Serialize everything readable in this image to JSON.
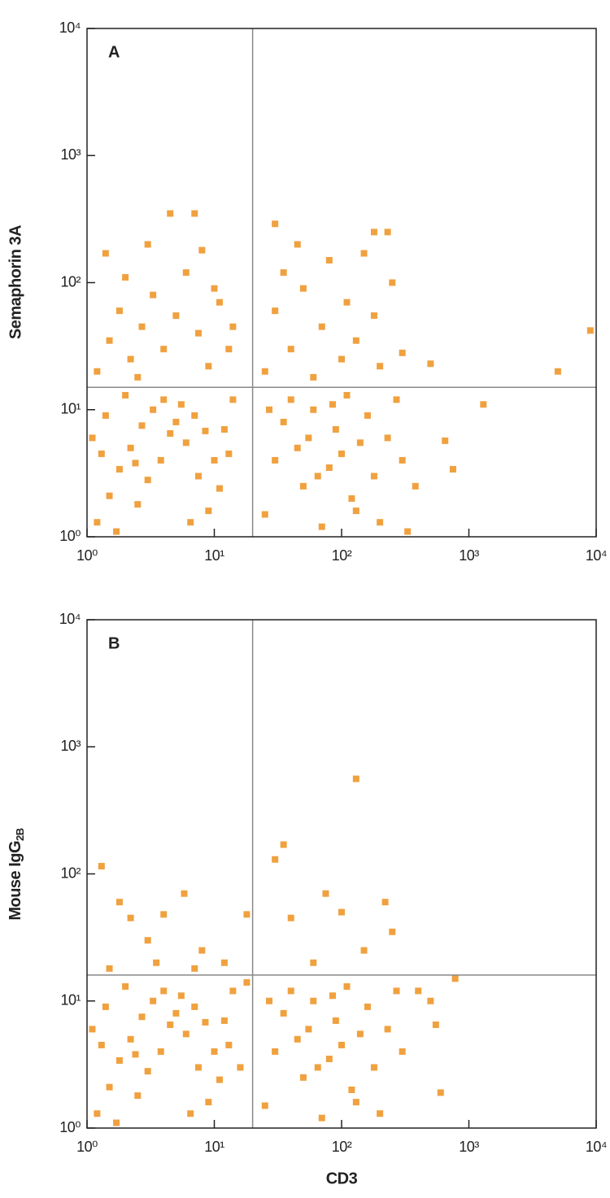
{
  "chart_data": [
    {
      "type": "scatter",
      "annotation": "A",
      "ylabel": "Semaphorin 3A",
      "color": "#f0a13f",
      "xscale": "log",
      "yscale": "log",
      "xlim": [
        1,
        10000
      ],
      "ylim": [
        1,
        10000
      ],
      "xticks": [
        {
          "value": 1,
          "label": "10⁰"
        },
        {
          "value": 10,
          "label": "10¹"
        },
        {
          "value": 100,
          "label": "10²"
        },
        {
          "value": 1000,
          "label": "10³"
        },
        {
          "value": 10000,
          "label": "10⁴"
        }
      ],
      "yticks": [
        {
          "value": 1,
          "label": "10⁰"
        },
        {
          "value": 10,
          "label": "10¹"
        },
        {
          "value": 100,
          "label": "10²"
        },
        {
          "value": 1000,
          "label": "10³"
        },
        {
          "value": 10000,
          "label": "10⁴"
        }
      ],
      "quadrant_x": 20,
      "quadrant_y": 15,
      "x": [
        1.2,
        1.5,
        1.8,
        2.2,
        2.7,
        3.3,
        4,
        5,
        6,
        7.5,
        9,
        11,
        13,
        1.1,
        1.4,
        2,
        2.5,
        3,
        3.8,
        4.5,
        5.5,
        7,
        8.5,
        10,
        12,
        14,
        1.3,
        1.7,
        2.4,
        6.5,
        1.2,
        1.5,
        1.8,
        2.2,
        2.7,
        3.3,
        4,
        5,
        6,
        7.5,
        9,
        11,
        13,
        1.4,
        2,
        3,
        4.5,
        7,
        8,
        10,
        14,
        2.5,
        25,
        30,
        35,
        40,
        50,
        55,
        60,
        70,
        80,
        90,
        100,
        110,
        120,
        140,
        160,
        180,
        200,
        230,
        270,
        300,
        45,
        65,
        85,
        130,
        27,
        25,
        30,
        35,
        40,
        50,
        60,
        70,
        80,
        100,
        110,
        130,
        150,
        180,
        200,
        230,
        250,
        30,
        180,
        300,
        45,
        9000,
        5000,
        1300,
        650,
        750,
        500,
        380,
        330
      ],
      "y": [
        1.3,
        2.1,
        3.4,
        5,
        7.5,
        10,
        12,
        8,
        5.5,
        3,
        1.6,
        2.4,
        4.5,
        6,
        9,
        13,
        1.8,
        2.8,
        4,
        6.5,
        11,
        9,
        6.8,
        4,
        7,
        12,
        4.5,
        1.1,
        3.8,
        1.3,
        20,
        35,
        60,
        25,
        45,
        80,
        30,
        55,
        120,
        40,
        22,
        70,
        30,
        170,
        110,
        200,
        350,
        350,
        180,
        90,
        45,
        18,
        1.5,
        4,
        8,
        12,
        2.5,
        6,
        10,
        1.2,
        3.5,
        7,
        4.5,
        13,
        2,
        5.5,
        9,
        3,
        1.3,
        6,
        12,
        4,
        5,
        3,
        11,
        1.6,
        10,
        20,
        60,
        120,
        30,
        90,
        18,
        45,
        150,
        25,
        70,
        35,
        170,
        55,
        22,
        250,
        100,
        290,
        250,
        28,
        200,
        42,
        20,
        11,
        5.7,
        3.4,
        23,
        2.5,
        1.1
      ]
    },
    {
      "type": "scatter",
      "annotation": "B",
      "ylabel": "Mouse IgG",
      "ylabel_sub": "2B",
      "xlabel": "CD3",
      "color": "#f0a13f",
      "xscale": "log",
      "yscale": "log",
      "xlim": [
        1,
        10000
      ],
      "ylim": [
        1,
        10000
      ],
      "xticks": [
        {
          "value": 1,
          "label": "10⁰"
        },
        {
          "value": 10,
          "label": "10¹"
        },
        {
          "value": 100,
          "label": "10²"
        },
        {
          "value": 1000,
          "label": "10³"
        },
        {
          "value": 10000,
          "label": "10⁴"
        }
      ],
      "yticks": [
        {
          "value": 1,
          "label": "10⁰"
        },
        {
          "value": 10,
          "label": "10¹"
        },
        {
          "value": 100,
          "label": "10²"
        },
        {
          "value": 1000,
          "label": "10³"
        },
        {
          "value": 10000,
          "label": "10⁴"
        }
      ],
      "quadrant_x": 20,
      "quadrant_y": 16,
      "x": [
        1.2,
        1.5,
        1.8,
        2.2,
        2.7,
        3.3,
        4,
        5,
        6,
        7.5,
        9,
        11,
        13,
        1.1,
        1.4,
        2,
        2.5,
        3,
        3.8,
        4.5,
        5.5,
        7,
        8.5,
        10,
        12,
        14,
        1.3,
        1.7,
        2.4,
        6.5,
        16,
        18,
        25,
        30,
        35,
        40,
        50,
        55,
        60,
        70,
        80,
        90,
        100,
        110,
        120,
        140,
        160,
        180,
        200,
        230,
        270,
        300,
        45,
        65,
        85,
        130,
        27,
        1.3,
        1.8,
        5.8,
        3,
        2.2,
        4,
        8,
        12,
        18,
        30,
        35,
        130,
        75,
        100,
        220,
        250,
        150,
        60,
        40,
        3.5,
        1.5,
        7,
        500,
        600,
        780,
        550,
        400
      ],
      "y": [
        1.3,
        2.1,
        3.4,
        5,
        7.5,
        10,
        12,
        8,
        5.5,
        3,
        1.6,
        2.4,
        4.5,
        6,
        9,
        13,
        1.8,
        2.8,
        4,
        6.5,
        11,
        9,
        6.8,
        4,
        7,
        12,
        4.5,
        1.1,
        3.8,
        1.3,
        3,
        14,
        1.5,
        4,
        8,
        12,
        2.5,
        6,
        10,
        1.2,
        3.5,
        7,
        4.5,
        13,
        2,
        5.5,
        9,
        3,
        1.3,
        6,
        12,
        4,
        5,
        3,
        11,
        1.6,
        10,
        115,
        60,
        70,
        30,
        45,
        48,
        25,
        20,
        48,
        130,
        170,
        560,
        70,
        50,
        60,
        35,
        25,
        20,
        45,
        20,
        18,
        18,
        10,
        1.9,
        15,
        6.5,
        12
      ]
    }
  ]
}
